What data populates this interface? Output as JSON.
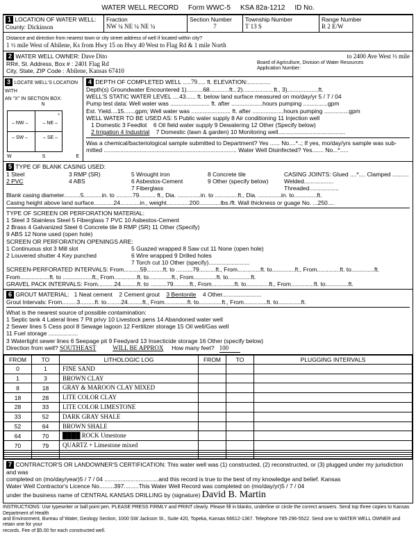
{
  "header": {
    "title": "WATER WELL RECORD",
    "form": "Form WWC-5",
    "ksa": "KSA 82a-1212",
    "id": "ID No."
  },
  "sec1": {
    "label": "LOCATION OF WATER WELL:",
    "countyLabel": "County:",
    "county": "Dickinson",
    "fractionLabel": "Fraction",
    "fraction1": "NW ¼",
    "fraction2": "NE ¼",
    "fraction3": "NE ¼",
    "sectionLabel": "Section Number",
    "section": "7",
    "townshipLabel": "Township Number",
    "township": "T   13   S",
    "rangeLabel": "Range Number",
    "range": "R   2      E/W",
    "distLabel": "Distance and direction from nearest town or city street address of well if located within city?",
    "dist": "1 ½ mile West of Abilene, Ks from Hwy 15 on Hwy 40 West to Flag Rd & 1 mile North"
  },
  "sec2": {
    "label": "WATER WELL OWNER:",
    "name": "Dave Dito",
    "toAddr": "to 2400 Ave West ½ mile",
    "board": "Board of Agriculture, Division of Water Resources",
    "appLabel": "Application Number:",
    "rrLabel": "RR#, St. Address, Box #   :",
    "addr": "2401 Flag Rd",
    "cityLabel": "City, State, ZIP Code    :",
    "city": "Abilene, Kansas  67410"
  },
  "sec3": {
    "label": "LOCATE WELL'S LOCATION WITH\nAN \"X\" IN SECTION BOX:"
  },
  "sec4": {
    "label": "DEPTH OF COMPLETED WELL",
    "depth": "79",
    "elevLabel": "ft. ELEVATION:",
    "gw1": "Depth(s) Groundwater Encountered    1)..........68............ft., 2)...................ft., 3)...................ft.",
    "swl": "WELL'S STATIC WATER LEVEL ....43...... ft. below land surface measured on mo/day/yr 5 / 7 / 04",
    "pump": "     Pump test data:  Well water was ........................ ft. after ...................hours pumping ...............gpm",
    "est": "Est. Yield....15.......gpm;   Well water was ........................ ft. after ...................hours pumping ...............gpm",
    "useLabel": "WELL WATER TO BE USED AS:",
    "use1": "1 Domestic      3 Feedlot",
    "use2": "5 Public water supply      8 Air conditioning     11 Injection well",
    "use3": "2 Irrigation       4 Industrial",
    "use4": "6 Oil field water supply   9 Dewatering            12 Other (Specify below)",
    "use5": "7 Domestic (lawn & garden) 10 Monitoring well.........................................",
    "chem": "Was a chemical/bacteriological sample submitted to Department? Yes ...... No....*..; If yes, mo/day/yrs sample was sub-\nmitted ................................................................................. Water Well Disinfected? Yes....... No...*....."
  },
  "sec5": {
    "label": "TYPE OF BLANK CASING USED:",
    "c1": "1 Steel",
    "c2": "3 RMP (SR)",
    "c3": "5 Wrought iron",
    "c4": "8 Concrete tile",
    "c5": "2 PVC",
    "c6": "4 ABS",
    "c7": "6 Asbestos-Cement",
    "c8": "9 Other (specify below)",
    "c9": "7 Fiberglass",
    "joints": "CASING JOINTS: Glued ....*.... Clamped ..........\n                       Welded..................\n                       Threaded..................",
    "bcd": "Blank casing diameter..........5...........in. to ..........79.......... ft., Dia. ..............in. to ..............ft., Dia. ..............in. to..............ft.",
    "height": "Casing height above land surface............24............in., weight..............200.............lbs./ft. Wall thickness or guage No. ...250....",
    "screenLabel": "TYPE OF SCREEN OR PERFORATION MATERIAL:",
    "s1": "1 Steel          3 Stainless Steel    5 Fiberglass      7 PVC           10 Asbestos-Cement",
    "s2": "2 Brass         4 Galvanized Steel   6 Concrete tile  8 RMP (SR)  11 Other (Specify)",
    "s3": "                                                                            9 ABS         12 None used (open hole)",
    "openLabel": "SCREEN OR PERFORATION OPENINGS ARE:",
    "o1": "1 Continuous slot      3 Mill slot",
    "o2": "5 Guazed wrapped     8 Saw cut          11 None (open hole)",
    "o3": "2 Louvered shutter    4 Key punched",
    "o4": "6 Wire wrapped        9 Drilled holes",
    "o5": "7 Torch cut              10 Other (specify).........................",
    "spi": "SCREEN-PERFORATED INTERVALS:   From..........59..........ft. to ..........79..........ft., From..............ft. to..............ft., From..............ft. to..............ft.\n                                                      From..................ft. to ..................ft., From..............ft. to..............ft., From..............ft. to..............ft.",
    "gpi": "           GRAVEL PACK INTERVALS:   From..........24..........ft. to ..........79..........ft., From..............ft. to..............ft., From..............ft. to..............ft."
  },
  "sec6": {
    "label": "GROUT MATERIAL:",
    "g1": "1 Neat cement",
    "g2": "2 Cement grout",
    "g3": "3 Bentonite",
    "g4": "4 Other........................",
    "gi": "Grout Intervals:   From.........3.........ft. to.........24.........ft., From..............ft. to..............ft., From..............ft. to..............ft.",
    "contamLabel": "What is the nearest source of possible contamination:",
    "co1": "1 Septic tank          4 Lateral lines       7 Pit privy           10 Livestock pens       14 Abandoned water well",
    "co2": "2 Sewer lines          5 Cess pool           8 Sewage lagoon  12 Fertilizer storage    15 Oil well/Gas well",
    "co3": "3 Watertight sewer lines  6 Seepage pit   9 Feedyard         13 Insecticide storage  16 Other (specify below)",
    "co4": "                                                                       11 Fuel storage          ..................",
    "dirLabel": "Direction from well?",
    "dir": "SOUTHEAST",
    "willbe": "WILL BE APPROX",
    "feetLabel": "How many feet?",
    "feet": "100"
  },
  "log": {
    "h1": "FROM",
    "h2": "TO",
    "h3": "LITHOLOGIC LOG",
    "h4": "FROM",
    "h5": "TO",
    "h6": "PLUGGING INTERVALS",
    "rows": [
      {
        "f": "0",
        "t": "1",
        "d": "FINE SAND"
      },
      {
        "f": "1",
        "t": "3",
        "d": "BROWN CLAY"
      },
      {
        "f": "8",
        "t": "18",
        "d": "GRAY & MAROON CLAY MIXED"
      },
      {
        "f": "18",
        "t": "28",
        "d": "LITE COLOR CLAY"
      },
      {
        "f": "28",
        "t": "33",
        "d": "LITE COLOR LIMESTONE"
      },
      {
        "f": "33",
        "t": "52",
        "d": "DARK GRAY SHALE"
      },
      {
        "f": "52",
        "t": "64",
        "d": "BROWN SHALE"
      },
      {
        "f": "64",
        "t": "70",
        "d": "████ ROCK Umestone"
      },
      {
        "f": "70",
        "t": "79",
        "d": "QUARTZ + Limestone mixed"
      }
    ]
  },
  "sec7": {
    "label": "CONTRACTOR'S OR LANDOWNER'S CERTIFICATION: This water well was (1) constructed, (2) reconstructed, or (3) plugged under my jurisdiction and was",
    "line2": "completed on (mo/day/year)5 /  7 / 04 .................................and this record is true to the best of my knowledge and belief. Kansas",
    "line3a": "Water Well Contractor's Licence No.........397.........This Water Well Record was completed on (mo/day/yr)5   /   7   /   04",
    "line3b": "under the business name of   CENTRAL KANSAS DRILLING      by (signature)",
    "sig": "David B. Martin"
  },
  "footer": "INSTRUCTIONS: Use typewriter or ball point pen. PLEASE PRESS FIRMLY and PRINT clearly. Please fill in blanks, underline or circle the correct answers. Send top three copies to Kansas Department of Health\nand Environment, Bureau of Water, Geology Section, 1000 SW Jackson St., Suite 420, Topeka, Kansas 66612-1367. Telephone 785-296-5522. Send one to WATER WELL OWNER and retain one for your\nrecords. Fee of $5.00 for each constructed well."
}
